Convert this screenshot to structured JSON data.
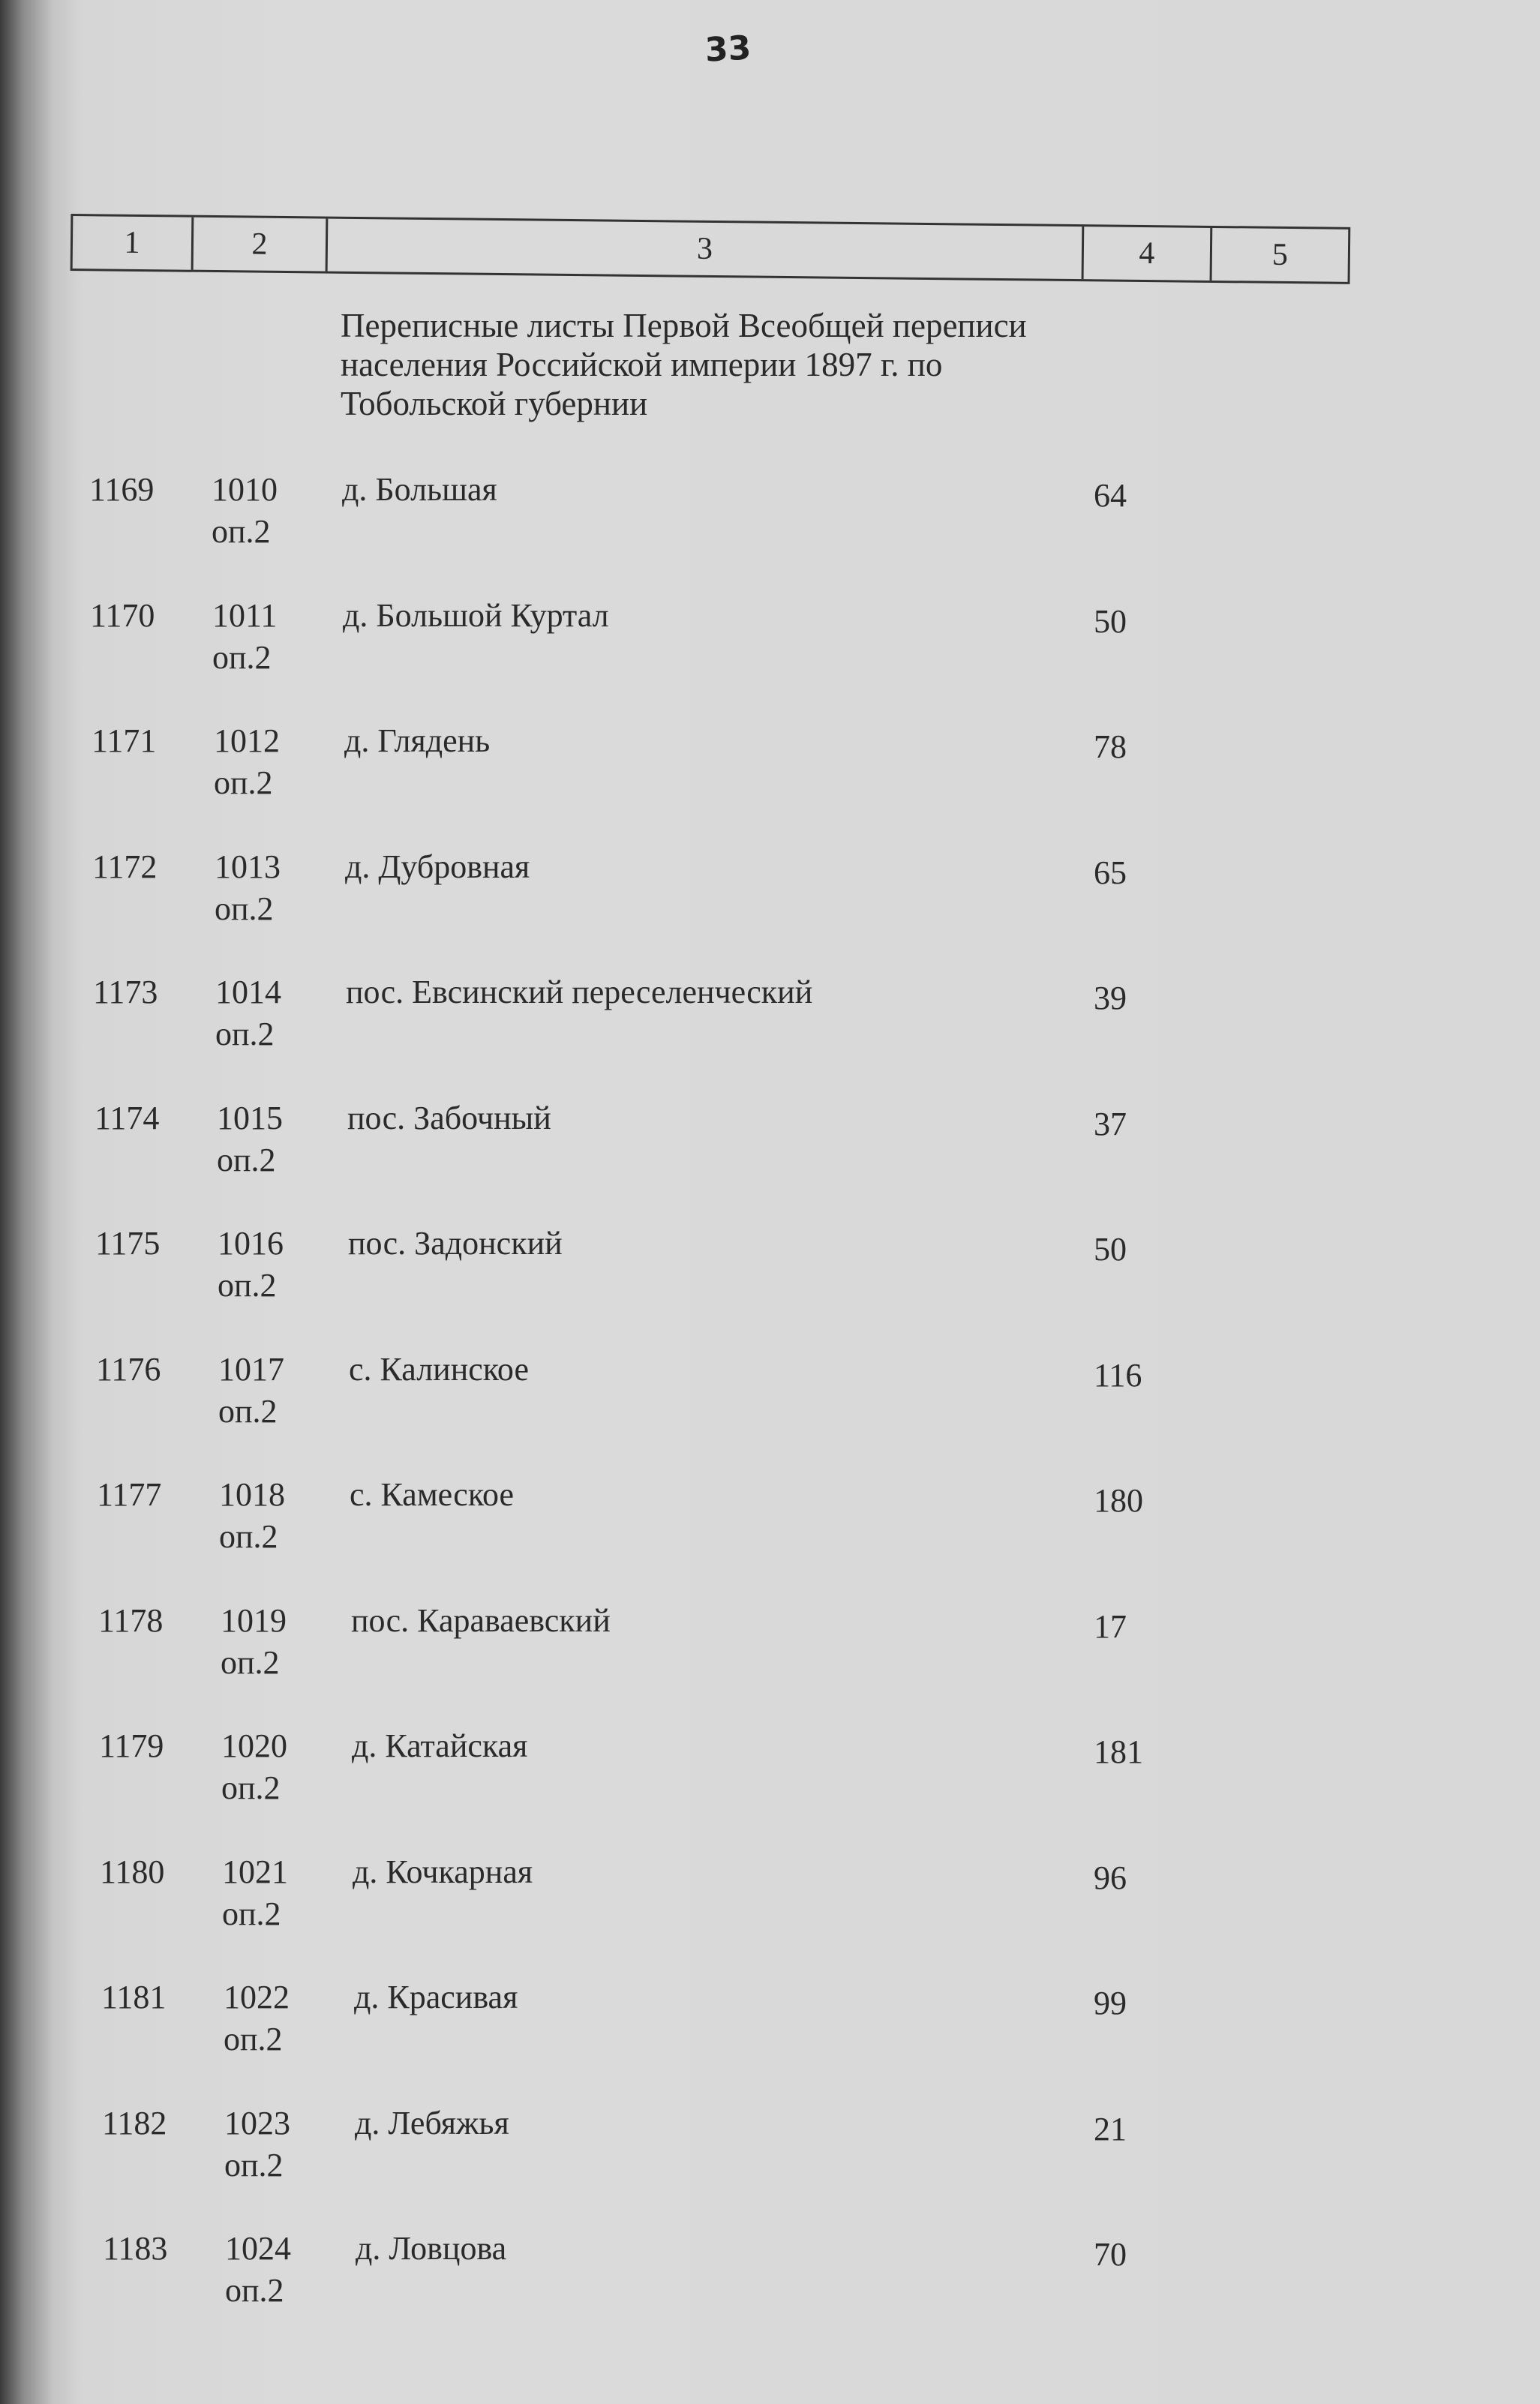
{
  "page_number": "33",
  "header_columns": [
    "1",
    "2",
    "3",
    "4",
    "5"
  ],
  "section_title": "Переписные листы Первой Всеобщей переписи населения Российской империи 1897 г. по Тобольской губернии",
  "rows": [
    {
      "num": "1169",
      "fond": "1010",
      "opis": "оп.2",
      "name": "д. Большая",
      "count": "64"
    },
    {
      "num": "1170",
      "fond": "1011",
      "opis": "оп.2",
      "name": "д. Большой Куртал",
      "count": "50"
    },
    {
      "num": "1171",
      "fond": "1012",
      "opis": "оп.2",
      "name": "д. Глядень",
      "count": "78"
    },
    {
      "num": "1172",
      "fond": "1013",
      "opis": "оп.2",
      "name": "д. Дубровная",
      "count": "65"
    },
    {
      "num": "1173",
      "fond": "1014",
      "opis": "оп.2",
      "name": "пос. Евсинский переселенческий",
      "count": "39"
    },
    {
      "num": "1174",
      "fond": "1015",
      "opis": "оп.2",
      "name": "пос. Забочный",
      "count": "37"
    },
    {
      "num": "1175",
      "fond": "1016",
      "opis": "оп.2",
      "name": "пос. Задонский",
      "count": "50"
    },
    {
      "num": "1176",
      "fond": "1017",
      "opis": "оп.2",
      "name": "с. Калинское",
      "count": "116"
    },
    {
      "num": "1177",
      "fond": "1018",
      "opis": "оп.2",
      "name": "с. Камеское",
      "count": "180"
    },
    {
      "num": "1178",
      "fond": "1019",
      "opis": "оп.2",
      "name": "пос. Караваевский",
      "count": "17"
    },
    {
      "num": "1179",
      "fond": "1020",
      "opis": "оп.2",
      "name": "д. Катайская",
      "count": "181"
    },
    {
      "num": "1180",
      "fond": "1021",
      "opis": "оп.2",
      "name": "д. Кочкарная",
      "count": "96"
    },
    {
      "num": "1181",
      "fond": "1022",
      "opis": "оп.2",
      "name": "д. Красивая",
      "count": "99"
    },
    {
      "num": "1182",
      "fond": "1023",
      "opis": "оп.2",
      "name": "д. Лебяжья",
      "count": "21"
    },
    {
      "num": "1183",
      "fond": "1024",
      "opis": "оп.2",
      "name": "д. Ловцова",
      "count": "70"
    }
  ]
}
